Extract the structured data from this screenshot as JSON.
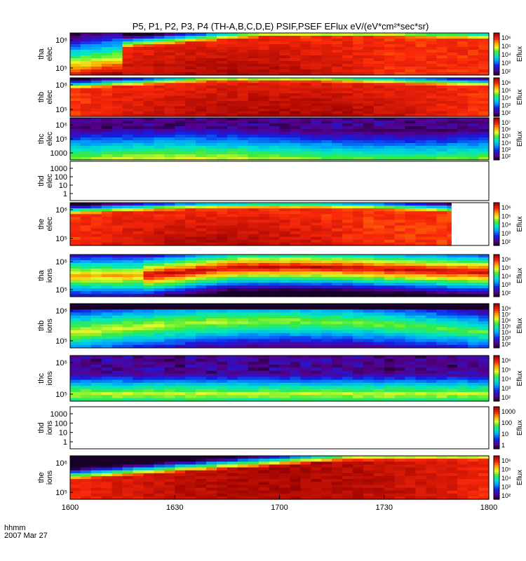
{
  "chart_data": {
    "type": "heatmap",
    "title": "P5, P1, P2, P3, P4 (TH-A,B,C,D,E) PSIF,PSEF EFlux eV/(eV*cm²*sec*sr)",
    "xlabel": "hhmm",
    "date_label": "2007 Mar 27",
    "x_ticks": [
      "1600",
      "1630",
      "1700",
      "1730",
      "1800"
    ],
    "x_range_minutes": [
      0,
      120
    ],
    "colorbar_label": "Eflux",
    "panels": [
      {
        "probe": "tha",
        "species": "elec",
        "y_ticks": [
          "10⁶",
          "10⁵"
        ],
        "cbar_ticks": [
          "10⁶",
          "10⁵",
          "10⁴",
          "10³",
          "10²"
        ],
        "data_end_fraction": 1.0,
        "profile": "elec_hot"
      },
      {
        "probe": "thb",
        "species": "elec",
        "y_ticks": [
          "10⁶",
          "10⁵"
        ],
        "cbar_ticks": [
          "10⁶",
          "10⁵",
          "10⁴",
          "10³",
          "10²"
        ],
        "data_end_fraction": 1.0,
        "profile": "elec_hot_b"
      },
      {
        "probe": "thc",
        "species": "elec",
        "y_ticks": [
          "10⁶",
          "10⁵",
          "1000"
        ],
        "cbar_ticks": [
          "10⁷",
          "10⁶",
          "10⁵",
          "10⁴",
          "10³",
          "10²"
        ],
        "data_end_fraction": 1.0,
        "profile": "elec_cool"
      },
      {
        "probe": "thd",
        "species": "elec",
        "y_ticks": [
          "1000",
          "100",
          "10",
          "1"
        ],
        "cbar_ticks": [],
        "data_end_fraction": 0.0,
        "profile": "empty"
      },
      {
        "probe": "the",
        "species": "elec",
        "y_ticks": [
          "10⁶",
          "10⁵"
        ],
        "cbar_ticks": [
          "10⁶",
          "10⁵",
          "10⁴",
          "10³",
          "10²"
        ],
        "data_end_fraction": 0.91,
        "profile": "elec_hot_e"
      },
      {
        "probe": "tha",
        "species": "ions",
        "y_ticks": [
          "10⁶",
          "10⁵"
        ],
        "cbar_ticks": [
          "10⁶",
          "10⁵",
          "10⁴",
          "10³",
          "10²"
        ],
        "data_end_fraction": 1.0,
        "profile": "ion_a"
      },
      {
        "probe": "thb",
        "species": "ions",
        "y_ticks": [
          "10⁶",
          "10⁵"
        ],
        "cbar_ticks": [
          "10⁸",
          "10⁷",
          "10⁶",
          "10⁵",
          "10⁴",
          "10³",
          "10²"
        ],
        "data_end_fraction": 1.0,
        "profile": "ion_b"
      },
      {
        "probe": "thc",
        "species": "ions",
        "y_ticks": [
          "10⁶",
          "10⁵"
        ],
        "cbar_ticks": [
          "10⁶",
          "10⁵",
          "10⁴",
          "10³",
          "10²"
        ],
        "data_end_fraction": 1.0,
        "profile": "ion_c"
      },
      {
        "probe": "thd",
        "species": "ions",
        "y_ticks": [
          "1000",
          "100",
          "10",
          "1"
        ],
        "cbar_ticks": [
          "1000",
          "100",
          "10",
          "1"
        ],
        "data_end_fraction": 0.0,
        "profile": "empty"
      },
      {
        "probe": "the",
        "species": "ions",
        "y_ticks": [
          "10⁶",
          "10⁵"
        ],
        "cbar_ticks": [
          "10⁶",
          "10⁵",
          "10⁴",
          "10³",
          "10²"
        ],
        "data_end_fraction": 1.0,
        "profile": "ion_e"
      }
    ]
  }
}
